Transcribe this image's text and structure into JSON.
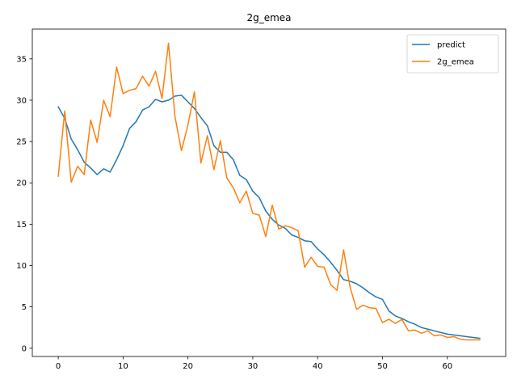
{
  "chart_data": {
    "type": "line",
    "title": "2g_emea",
    "xlabel": "",
    "ylabel": "",
    "xlim": [
      -4,
      69
    ],
    "ylim": [
      -1,
      38.6
    ],
    "x_ticks": [
      0,
      10,
      20,
      30,
      40,
      50,
      60
    ],
    "y_ticks": [
      0,
      5,
      10,
      15,
      20,
      25,
      30,
      35
    ],
    "grid": false,
    "legend_position": "top-right",
    "series": [
      {
        "name": "predict",
        "color": "#1f77b4",
        "values": [
          29.2,
          27.8,
          25.3,
          24.0,
          22.5,
          21.8,
          21.0,
          21.7,
          21.3,
          22.8,
          24.5,
          26.6,
          27.4,
          28.8,
          29.2,
          30.1,
          29.8,
          30.0,
          30.5,
          30.6,
          29.8,
          29.0,
          27.9,
          26.9,
          24.5,
          23.7,
          23.7,
          22.8,
          20.9,
          20.4,
          19.0,
          18.2,
          16.6,
          15.6,
          14.9,
          14.5,
          13.7,
          13.4,
          13.0,
          12.9,
          12.0,
          11.3,
          10.4,
          9.4,
          8.3,
          8.1,
          7.8,
          7.3,
          6.7,
          6.2,
          5.9,
          4.5,
          3.9,
          3.6,
          3.2,
          2.9,
          2.5,
          2.3,
          2.1,
          1.9,
          1.7,
          1.6,
          1.5,
          1.4,
          1.3,
          1.2
        ],
        "x": [
          0,
          1,
          2,
          3,
          4,
          5,
          6,
          7,
          8,
          9,
          10,
          11,
          12,
          13,
          14,
          15,
          16,
          17,
          18,
          19,
          20,
          21,
          22,
          23,
          24,
          25,
          26,
          27,
          28,
          29,
          30,
          31,
          32,
          33,
          34,
          35,
          36,
          37,
          38,
          39,
          40,
          41,
          42,
          43,
          44,
          45,
          46,
          47,
          48,
          49,
          50,
          51,
          52,
          53,
          54,
          55,
          56,
          57,
          58,
          59,
          60,
          61,
          62,
          63,
          64,
          65
        ]
      },
      {
        "name": "2g_emea",
        "color": "#ff7f0e",
        "values": [
          20.8,
          28.7,
          20.1,
          22.0,
          21.0,
          27.6,
          24.9,
          30.0,
          28.0,
          34.0,
          30.8,
          31.2,
          31.4,
          32.9,
          31.7,
          33.5,
          30.2,
          36.9,
          28.0,
          23.9,
          27.0,
          31.0,
          22.4,
          25.7,
          21.6,
          25.1,
          20.6,
          19.4,
          17.6,
          19.0,
          16.3,
          16.1,
          13.5,
          17.3,
          14.4,
          14.8,
          14.6,
          14.2,
          9.8,
          11.0,
          9.9,
          9.8,
          7.7,
          7.0,
          11.9,
          7.4,
          4.7,
          5.2,
          4.9,
          4.8,
          3.1,
          3.5,
          3.0,
          3.5,
          2.1,
          2.2,
          1.8,
          2.1,
          1.5,
          1.6,
          1.3,
          1.4,
          1.1,
          1.0,
          1.0,
          1.0
        ],
        "x": [
          0,
          1,
          2,
          3,
          4,
          5,
          6,
          7,
          8,
          9,
          10,
          11,
          12,
          13,
          14,
          15,
          16,
          17,
          18,
          19,
          20,
          21,
          22,
          23,
          24,
          25,
          26,
          27,
          28,
          29,
          30,
          31,
          32,
          33,
          34,
          35,
          36,
          37,
          38,
          39,
          40,
          41,
          42,
          43,
          44,
          45,
          46,
          47,
          48,
          49,
          50,
          51,
          52,
          53,
          54,
          55,
          56,
          57,
          58,
          59,
          60,
          61,
          62,
          63,
          64,
          65
        ]
      }
    ]
  }
}
